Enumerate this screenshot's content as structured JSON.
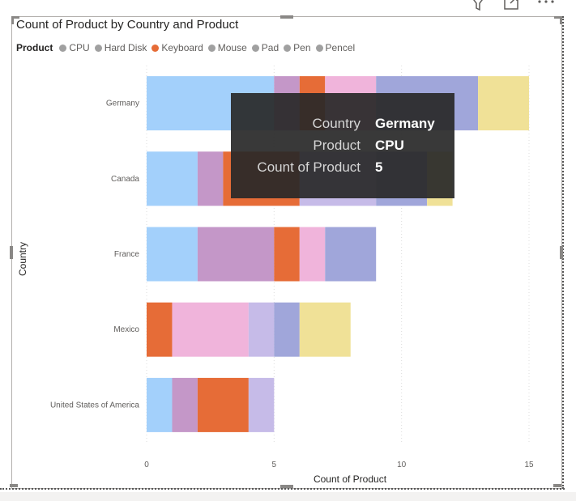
{
  "chart_data": {
    "type": "bar",
    "orientation": "horizontal",
    "stacked": true,
    "title": "Count of Product by Country and Product",
    "xlabel": "Count of Product",
    "ylabel": "Country",
    "xlim": [
      0,
      15
    ],
    "xticks": [
      "0",
      "5",
      "10",
      "15"
    ],
    "grid": true,
    "legend": {
      "title": "Product",
      "position": "top-left"
    },
    "categories": [
      "Germany",
      "Canada",
      "France",
      "Mexico",
      "United States of America"
    ],
    "series": [
      {
        "name": "CPU",
        "color": "#a3d0fb",
        "values": [
          5,
          2,
          2,
          0,
          1
        ]
      },
      {
        "name": "Hard Disk",
        "color": "#c497c8",
        "values": [
          1,
          1,
          3,
          0,
          1
        ]
      },
      {
        "name": "Keyboard",
        "color": "#e66c37",
        "values": [
          1,
          3,
          1,
          1,
          2
        ]
      },
      {
        "name": "Mouse",
        "color": "#f0b4db",
        "values": [
          2,
          0,
          1,
          3,
          0
        ]
      },
      {
        "name": "Pad",
        "color": "#c6bbe8",
        "values": [
          0,
          3,
          0,
          1,
          1
        ]
      },
      {
        "name": "Pen",
        "color": "#a0a6da",
        "values": [
          4,
          2,
          2,
          1,
          0
        ]
      },
      {
        "name": "Pencel",
        "color": "#f0e197",
        "values": [
          2,
          1,
          0,
          2,
          0
        ]
      }
    ]
  },
  "legend_dot_color": "#a0a0a0",
  "legend_active_color": "#e66c37",
  "tooltip": {
    "rows": [
      {
        "label": "Country",
        "value": "Germany"
      },
      {
        "label": "Product",
        "value": "CPU"
      },
      {
        "label": "Count of Product",
        "value": "5"
      }
    ]
  },
  "header": {
    "icons": [
      "filter-icon",
      "focus-mode-icon",
      "more-options-icon"
    ]
  }
}
